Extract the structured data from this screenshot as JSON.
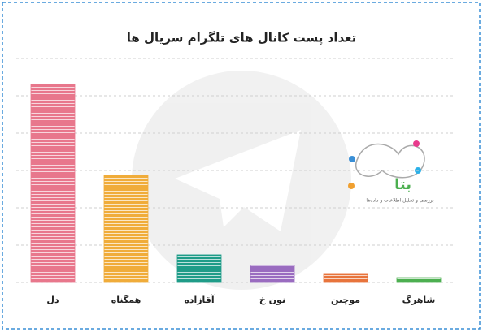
{
  "chart_data": {
    "type": "bar",
    "title": "تعداد پست کانال های تلگرام سریال ها",
    "categories": [
      "دل",
      "همگناه",
      "آقازاده",
      "نون خ",
      "موچین",
      "شاهرگ"
    ],
    "values": [
      5.3,
      2.87,
      0.74,
      0.46,
      0.24,
      0.13
    ],
    "colors": [
      "#e8778c",
      "#f0ac3a",
      "#1f9c88",
      "#9a6cc0",
      "#e8743c",
      "#4caf50"
    ],
    "ylim": [
      0,
      6
    ],
    "yticks": [
      0,
      1,
      2,
      3,
      4,
      5,
      6
    ],
    "grid": true,
    "logo": {
      "name": "بتا",
      "tagline": "بررسی و تحلیل اطلاعات و داده‌ها"
    }
  }
}
